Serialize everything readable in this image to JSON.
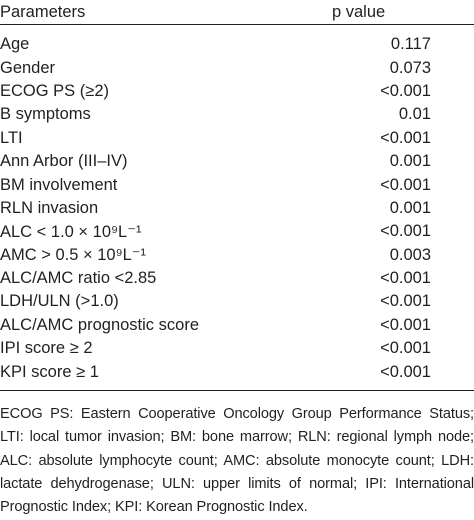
{
  "table": {
    "header": [
      "Parameters",
      "p value"
    ],
    "rows": [
      [
        "Age",
        "0.117"
      ],
      [
        "Gender",
        "0.073"
      ],
      [
        "ECOG PS (≥2)",
        "<0.001"
      ],
      [
        "B symptoms",
        "0.01"
      ],
      [
        "LTI",
        "<0.001"
      ],
      [
        "Ann Arbor (III–IV)",
        "0.001"
      ],
      [
        "BM involvement",
        "<0.001"
      ],
      [
        "RLN invasion",
        "0.001"
      ],
      [
        "ALC < 1.0 × 10⁹L⁻¹",
        "<0.001"
      ],
      [
        "AMC > 0.5 × 10⁹L⁻¹",
        "0.003"
      ],
      [
        "ALC/AMC ratio <2.85",
        "<0.001"
      ],
      [
        "LDH/ULN (>1.0)",
        "<0.001"
      ],
      [
        "ALC/AMC prognostic score",
        "<0.001"
      ],
      [
        "IPI score ≥ 2",
        "<0.001"
      ],
      [
        "KPI score ≥ 1",
        "<0.001"
      ]
    ]
  },
  "footnote": "ECOG PS: Eastern Cooperative Oncology Group Performance Status; LTI: local tumor invasion; BM: bone marrow; RLN: regional lymph node; ALC: absolute lymphocyte count; AMC: absolute monocyte count; LDH: lactate dehydrogenase; ULN: upper limits of normal; IPI: International Prognostic Index; KPI: Korean Prognostic Index."
}
